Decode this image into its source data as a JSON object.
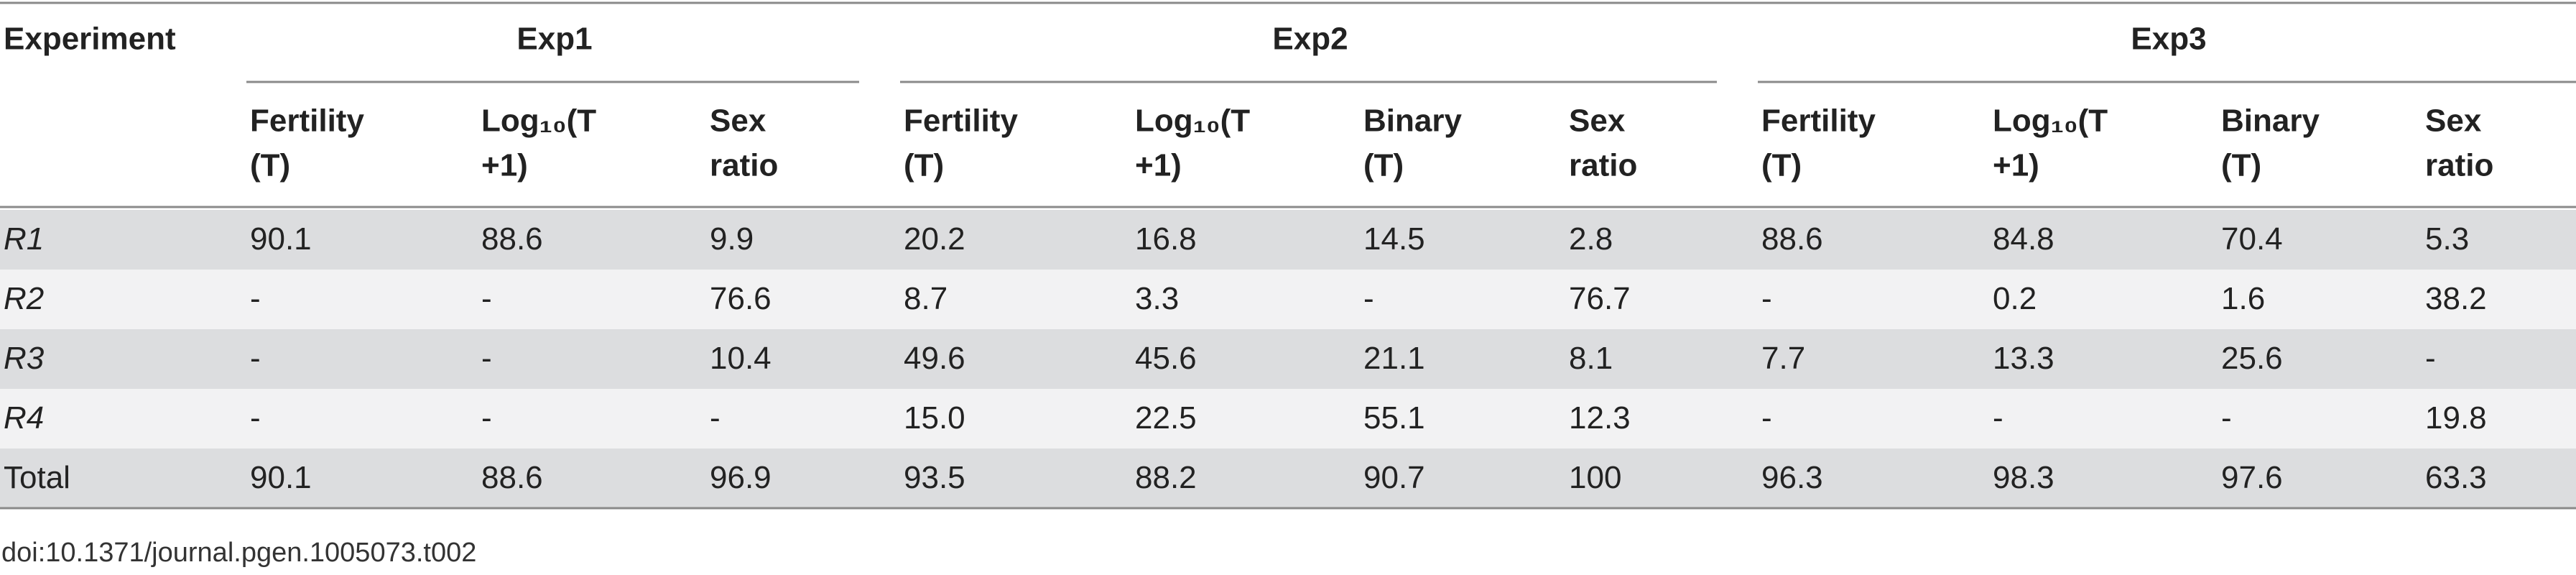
{
  "table": {
    "corner": "Experiment",
    "groups": [
      {
        "label": "Exp1",
        "columns": [
          [
            "Fertility",
            "(T)"
          ],
          [
            "Log₁₀(T",
            "+1)"
          ],
          [
            "Sex",
            "ratio"
          ]
        ]
      },
      {
        "label": "Exp2",
        "columns": [
          [
            "Fertility",
            "(T)"
          ],
          [
            "Log₁₀(T",
            "+1)"
          ],
          [
            "Binary",
            "(T)"
          ],
          [
            "Sex",
            "ratio"
          ]
        ]
      },
      {
        "label": "Exp3",
        "columns": [
          [
            "Fertility",
            "(T)"
          ],
          [
            "Log₁₀(T",
            "+1)"
          ],
          [
            "Binary",
            "(T)"
          ],
          [
            "Sex",
            "ratio"
          ]
        ]
      }
    ],
    "rows": [
      {
        "label": "R1",
        "cells": [
          "90.1",
          "88.6",
          "9.9",
          "20.2",
          "16.8",
          "14.5",
          "2.8",
          "88.6",
          "84.8",
          "70.4",
          "5.3"
        ]
      },
      {
        "label": "R2",
        "cells": [
          "-",
          "-",
          "76.6",
          "8.7",
          "3.3",
          "-",
          "76.7",
          "-",
          "0.2",
          "1.6",
          "38.2"
        ]
      },
      {
        "label": "R3",
        "cells": [
          "-",
          "-",
          "10.4",
          "49.6",
          "45.6",
          "21.1",
          "8.1",
          "7.7",
          "13.3",
          "25.6",
          "-"
        ]
      },
      {
        "label": "R4",
        "cells": [
          "-",
          "-",
          "-",
          "15.0",
          "22.5",
          "55.1",
          "12.3",
          "-",
          "-",
          "-",
          "19.8"
        ]
      },
      {
        "label": "Total",
        "cells": [
          "90.1",
          "88.6",
          "96.9",
          "93.5",
          "88.2",
          "90.7",
          "100",
          "96.3",
          "98.3",
          "97.6",
          "63.3"
        ]
      }
    ],
    "footnote": "doi:10.1371/journal.pgen.1005073.t002"
  }
}
